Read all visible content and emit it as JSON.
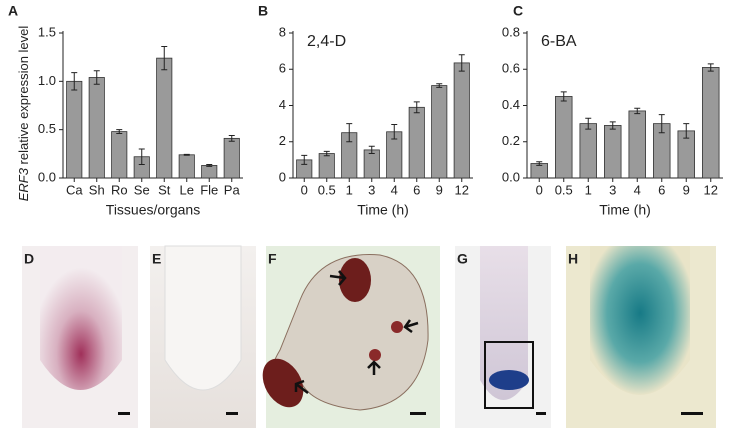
{
  "chart_data": [
    {
      "type": "bar",
      "panel": "A",
      "ylabel_gene": "ERF3",
      "ylabel": "relative expression level",
      "xlabel": "Tissues/organs",
      "categories": [
        "Ca",
        "Sh",
        "Ro",
        "Se",
        "St",
        "Le",
        "Fle",
        "Pa"
      ],
      "values": [
        1.0,
        1.04,
        0.48,
        0.22,
        1.24,
        0.24,
        0.13,
        0.41
      ],
      "errors": [
        0.09,
        0.07,
        0.02,
        0.08,
        0.12,
        0.005,
        0.01,
        0.03
      ],
      "ylim": [
        0,
        1.5
      ],
      "yticks": [
        {
          "value": 0,
          "label": "0.0"
        },
        0.5,
        {
          "value": 1,
          "label": "1.0"
        },
        1.5
      ],
      "color": "#9a9a9a"
    },
    {
      "type": "bar",
      "panel": "B",
      "title": "2,4-D",
      "xlabel": "Time (h)",
      "categories": [
        "0",
        "0.5",
        "1",
        "3",
        "4",
        "6",
        "9",
        "12"
      ],
      "values": [
        1.0,
        1.35,
        2.5,
        1.55,
        2.55,
        3.9,
        5.1,
        6.35
      ],
      "errors": [
        0.25,
        0.12,
        0.5,
        0.2,
        0.4,
        0.3,
        0.1,
        0.45
      ],
      "ylim": [
        0,
        8
      ],
      "yticks": [
        0,
        2,
        4,
        6,
        8
      ],
      "color": "#9a9a9a"
    },
    {
      "type": "bar",
      "panel": "C",
      "title": "6-BA",
      "xlabel": "Time (h)",
      "categories": [
        "0",
        "0.5",
        "1",
        "3",
        "4",
        "6",
        "9",
        "12"
      ],
      "values": [
        0.08,
        0.45,
        0.3,
        0.29,
        0.37,
        0.3,
        0.26,
        0.61
      ],
      "errors": [
        0.01,
        0.025,
        0.03,
        0.02,
        0.015,
        0.05,
        0.04,
        0.02
      ],
      "ylim": [
        0,
        0.8
      ],
      "yticks": [
        {
          "value": 0,
          "label": "0.0"
        },
        0.2,
        0.4,
        0.6,
        0.8
      ],
      "color": "#9a9a9a"
    }
  ],
  "image_panels": [
    "D",
    "E",
    "F",
    "G",
    "H"
  ]
}
